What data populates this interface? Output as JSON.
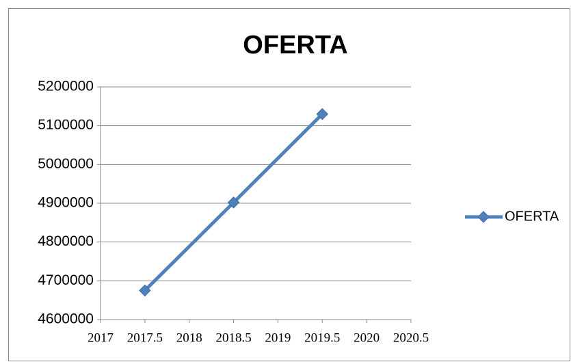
{
  "chart_data": {
    "type": "scatter",
    "title": "OFERTA",
    "x": [
      2017.5,
      2018.5,
      2019.5
    ],
    "series": [
      {
        "name": "OFERTA",
        "color": "#4f81bd",
        "values": [
          4675000,
          4902000,
          5130000
        ]
      }
    ],
    "xlim": [
      2017,
      2020.5
    ],
    "xticks": [
      2017,
      2017.5,
      2018,
      2018.5,
      2019,
      2019.5,
      2020,
      2020.5
    ],
    "ylim": [
      4600000,
      5200000
    ],
    "yticks": [
      4600000,
      4700000,
      4800000,
      4900000,
      5000000,
      5100000,
      5200000
    ],
    "grid": true,
    "legend": "right"
  }
}
